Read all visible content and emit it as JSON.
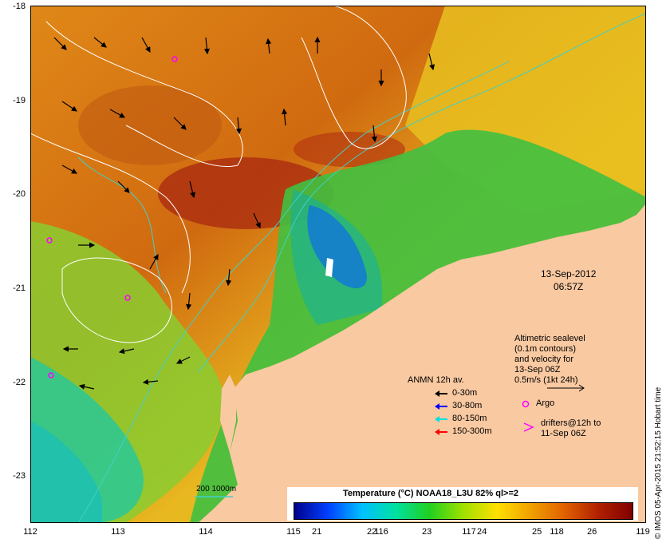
{
  "map": {
    "date": "13-Sep-2012",
    "time": "06:57Z",
    "stamp": "© IMOS 05-Apr-2015 21:52:15 Hobart time",
    "lat_ticks": [
      "-18",
      "-19",
      "-20",
      "-21",
      "-22",
      "-23"
    ],
    "lon_ticks": [
      "112",
      "113",
      "114",
      "115",
      "116",
      "117",
      "118",
      "119"
    ],
    "colors": {
      "land": "#f9c9a1",
      "shelf_contour": "#40d0c8",
      "sealevel_contour": "#ffffff",
      "argo": "#ff00ff"
    }
  },
  "altimetry_note": {
    "lines": [
      "Altimetric sealevel",
      "(0.1m contours)",
      "and velocity for",
      "13-Sep 06Z",
      "0.5m/s (1kt 24h)"
    ]
  },
  "mooring_legend": {
    "title": "ANMN 12h av.",
    "items": [
      {
        "label": "0-30m",
        "color": "#000000"
      },
      {
        "label": "30-80m",
        "color": "#0000ff"
      },
      {
        "label": "80-150m",
        "color": "#00e0e0"
      },
      {
        "label": "150-300m",
        "color": "#ff0000"
      }
    ]
  },
  "argo_legend": {
    "label": "Argo"
  },
  "drifter_legend": {
    "line1": "drifters@12h to",
    "line2": "11-Sep 06Z"
  },
  "isobath_legend": {
    "label": "200  1000m"
  },
  "colorbar": {
    "title": "Temperature (°C) NOAA18_L3U 82% ql>=2",
    "ticks": [
      "21",
      "22",
      "23",
      "24",
      "25",
      "26"
    ],
    "stops": [
      "#00008b",
      "#0040ff",
      "#00c0ff",
      "#00e0a0",
      "#20d020",
      "#a0e000",
      "#ffe000",
      "#f0a000",
      "#e06000",
      "#b02000",
      "#800000"
    ]
  }
}
